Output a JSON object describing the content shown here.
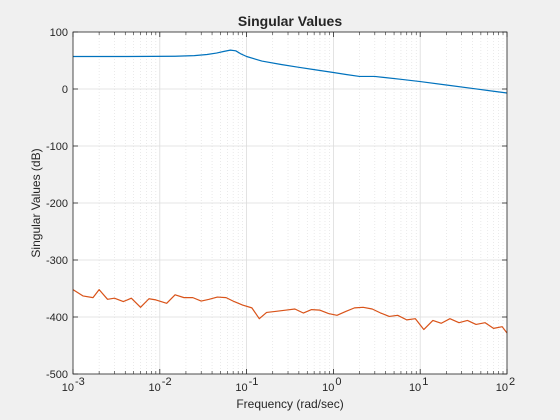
{
  "chart_data": {
    "type": "line",
    "title": "Singular Values",
    "xlabel": "Frequency (rad/sec)",
    "ylabel": "Singular Values (dB)",
    "x_scale": "log",
    "xlim": [
      0.001,
      100
    ],
    "ylim": [
      -500,
      100
    ],
    "x_ticks": [
      {
        "value": 0.001,
        "base": "10",
        "exp": "-3"
      },
      {
        "value": 0.01,
        "base": "10",
        "exp": "-2"
      },
      {
        "value": 0.1,
        "base": "10",
        "exp": "-1"
      },
      {
        "value": 1,
        "base": "10",
        "exp": "0"
      },
      {
        "value": 10,
        "base": "10",
        "exp": "1"
      },
      {
        "value": 100,
        "base": "10",
        "exp": "2"
      }
    ],
    "y_ticks": [
      100,
      0,
      -100,
      -200,
      -300,
      -400,
      -500
    ],
    "y_tick_labels": [
      "100",
      "0",
      "-100",
      "-200",
      "-300",
      "-400",
      "-500"
    ],
    "grid": true,
    "colors": {
      "series1": "#0072bd",
      "series2": "#d95319",
      "grid": "#dcdcdc",
      "axes_bg": "#ffffff",
      "figure_bg": "#f0f0f0"
    },
    "series": [
      {
        "x": [
          0.001,
          0.002,
          0.004,
          0.008,
          0.015,
          0.025,
          0.035,
          0.045,
          0.055,
          0.065,
          0.075,
          0.085,
          0.1,
          0.15,
          0.25,
          0.4,
          0.6,
          1.0,
          1.4,
          2.0,
          3.0,
          4.0,
          6.0,
          10,
          20,
          40,
          70,
          100
        ],
        "values": [
          57,
          57,
          57,
          57.2,
          57.5,
          58.5,
          60.5,
          63,
          66,
          68.2,
          67,
          62,
          57,
          49,
          43,
          38,
          34,
          29,
          25.5,
          22,
          22,
          20,
          17,
          13,
          7,
          1,
          -4,
          -7
        ]
      },
      {
        "x": [
          0.001,
          0.0013,
          0.0017,
          0.002,
          0.0025,
          0.003,
          0.0038,
          0.0047,
          0.006,
          0.0075,
          0.009,
          0.012,
          0.015,
          0.019,
          0.024,
          0.03,
          0.037,
          0.046,
          0.058,
          0.072,
          0.09,
          0.115,
          0.14,
          0.17,
          0.22,
          0.28,
          0.36,
          0.45,
          0.56,
          0.7,
          0.88,
          1.1,
          1.4,
          1.75,
          2.2,
          2.8,
          3.5,
          4.4,
          5.5,
          7,
          8.8,
          11,
          14,
          17.5,
          22,
          28,
          35,
          44,
          56,
          70,
          88,
          100
        ],
        "values": [
          -352,
          -363,
          -366,
          -352,
          -369,
          -367,
          -373,
          -367,
          -383,
          -368,
          -370,
          -376,
          -361,
          -366,
          -366,
          -372,
          -369,
          -365,
          -366,
          -373,
          -379,
          -384,
          -403,
          -392,
          -390,
          -388,
          -386,
          -393,
          -387,
          -388,
          -394,
          -397,
          -390,
          -384,
          -383,
          -386,
          -393,
          -399,
          -397,
          -405,
          -403,
          -422,
          -406,
          -411,
          -403,
          -410,
          -406,
          -413,
          -410,
          -420,
          -417,
          -428
        ]
      }
    ]
  }
}
